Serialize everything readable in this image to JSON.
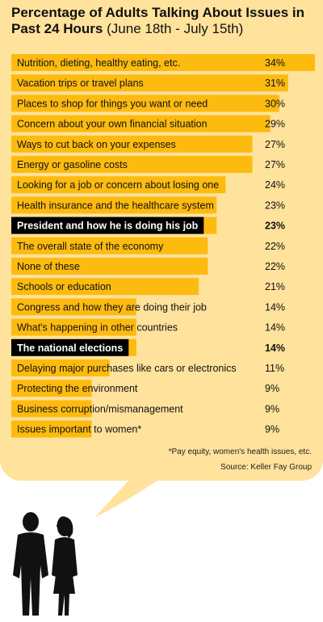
{
  "title_main": "Percentage of Adults Talking About Issues in Past 24 Hours",
  "title_sub": "(June 18th - July 15th)",
  "footnote": "*Pay equity, women's health issues, etc.",
  "source": "Source: Keller Fay Group",
  "colors": {
    "bubble": "#ffe29b",
    "bar": "#fdbb10",
    "highlight": "#000000"
  },
  "chart_data": {
    "type": "bar",
    "orientation": "horizontal",
    "unit": "%",
    "xlim": [
      0,
      34
    ],
    "categories": [
      "Nutrition, dieting, healthy eating, etc.",
      "Vacation trips or travel plans",
      "Places to shop for things you want or need",
      "Concern about your own financial situation",
      "Ways to cut back on your expenses",
      "Energy or gasoline costs",
      "Looking for a job or concern about losing one",
      "Health insurance and the healthcare system",
      "President and how he is doing his job",
      "The overall state of the economy",
      "None of these",
      "Schools or education",
      "Congress and how they are doing their job",
      "What's happening in other countries",
      "The national elections",
      "Delaying major purchases like cars or electronics",
      "Protecting the environment",
      "Business corruption/mismanagement",
      "Issues important to women*"
    ],
    "values": [
      34,
      31,
      30,
      29,
      27,
      27,
      24,
      23,
      23,
      22,
      22,
      21,
      14,
      14,
      14,
      11,
      9,
      9,
      9
    ],
    "value_labels": [
      "34%",
      "31%",
      "30%",
      "29%",
      "27%",
      "27%",
      "24%",
      "23%",
      "23%",
      "22%",
      "22%",
      "21%",
      "14%",
      "14%",
      "14%",
      "11%",
      "9%",
      "9%",
      "9%"
    ],
    "highlighted": [
      "President and how he is doing his job",
      "The national elections"
    ]
  }
}
